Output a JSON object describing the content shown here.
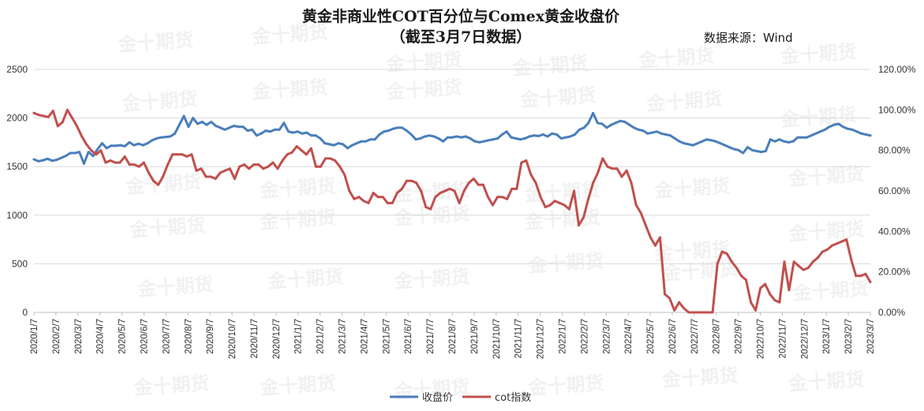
{
  "source_note": "数据来源：Wind",
  "watermark_text": "金十期货",
  "chart_data": {
    "type": "line",
    "title": "黄金非商业性COT百分位与Comex黄金收盘价",
    "subtitle": "（截至3月7日数据）",
    "xlabel": "",
    "ylabel": "",
    "ylim": [
      0,
      2500
    ],
    "y2lim": [
      0,
      1.2
    ],
    "yticks": [
      "0",
      "500",
      "1000",
      "1500",
      "2000",
      "2500"
    ],
    "y2ticks": [
      "0.00%",
      "20.00%",
      "40.00%",
      "60.00%",
      "80.00%",
      "100.00%",
      "120.00%"
    ],
    "xticks": [
      "2020/1/7",
      "2020/2/7",
      "2020/3/7",
      "2020/4/7",
      "2020/5/7",
      "2020/6/7",
      "2020/7/7",
      "2020/8/7",
      "2020/9/7",
      "2020/10/7",
      "2020/11/7",
      "2020/12/7",
      "2021/1/7",
      "2021/2/7",
      "2021/3/7",
      "2021/4/7",
      "2021/5/7",
      "2021/6/7",
      "2021/7/7",
      "2021/8/7",
      "2021/9/7",
      "2021/10/7",
      "2021/11/7",
      "2021/12/7",
      "2022/1/7",
      "2022/2/7",
      "2022/3/7",
      "2022/4/7",
      "2022/5/7",
      "2022/6/7",
      "2022/7/7",
      "2022/8/7",
      "2022/9/7",
      "2022/10/7",
      "2022/11/7",
      "2022/12/7",
      "2023/1/7",
      "2023/2/7",
      "2023/3/7"
    ],
    "grid": true,
    "legend_position": "bottom",
    "series": [
      {
        "name": "收盘价",
        "axis": "left",
        "color": "#4a7ebb",
        "values": [
          1575,
          1555,
          1565,
          1580,
          1560,
          1570,
          1590,
          1610,
          1640,
          1640,
          1650,
          1530,
          1650,
          1610,
          1680,
          1740,
          1690,
          1715,
          1715,
          1720,
          1710,
          1750,
          1720,
          1735,
          1720,
          1740,
          1770,
          1790,
          1800,
          1805,
          1810,
          1840,
          1930,
          2020,
          1910,
          2000,
          1940,
          1960,
          1930,
          1960,
          1920,
          1900,
          1880,
          1900,
          1920,
          1910,
          1910,
          1870,
          1880,
          1820,
          1840,
          1870,
          1860,
          1880,
          1880,
          1950,
          1860,
          1850,
          1860,
          1840,
          1850,
          1820,
          1820,
          1790,
          1740,
          1730,
          1720,
          1740,
          1730,
          1690,
          1720,
          1740,
          1760,
          1760,
          1780,
          1780,
          1830,
          1860,
          1870,
          1890,
          1900,
          1900,
          1870,
          1830,
          1780,
          1790,
          1810,
          1820,
          1810,
          1790,
          1760,
          1800,
          1800,
          1810,
          1800,
          1810,
          1790,
          1760,
          1750,
          1760,
          1770,
          1780,
          1790,
          1830,
          1860,
          1800,
          1790,
          1780,
          1790,
          1810,
          1820,
          1815,
          1830,
          1810,
          1840,
          1830,
          1790,
          1800,
          1810,
          1830,
          1880,
          1900,
          1950,
          2050,
          1950,
          1940,
          1900,
          1930,
          1950,
          1970,
          1960,
          1930,
          1900,
          1880,
          1870,
          1840,
          1850,
          1860,
          1840,
          1830,
          1820,
          1790,
          1760,
          1740,
          1730,
          1720,
          1740,
          1760,
          1780,
          1770,
          1760,
          1740,
          1720,
          1700,
          1680,
          1670,
          1640,
          1700,
          1670,
          1660,
          1650,
          1660,
          1780,
          1760,
          1780,
          1760,
          1750,
          1760,
          1800,
          1800,
          1800,
          1820,
          1840,
          1860,
          1880,
          1910,
          1930,
          1940,
          1910,
          1890,
          1880,
          1860,
          1840,
          1830,
          1820
        ]
      },
      {
        "name": "cot指数",
        "axis": "right",
        "color": "#c0504d",
        "values": [
          0.985,
          0.975,
          0.97,
          0.965,
          0.995,
          0.92,
          0.94,
          1.0,
          0.96,
          0.92,
          0.87,
          0.83,
          0.8,
          0.78,
          0.8,
          0.74,
          0.75,
          0.74,
          0.74,
          0.77,
          0.73,
          0.73,
          0.72,
          0.74,
          0.69,
          0.65,
          0.63,
          0.67,
          0.73,
          0.78,
          0.78,
          0.78,
          0.77,
          0.78,
          0.7,
          0.71,
          0.67,
          0.67,
          0.66,
          0.69,
          0.7,
          0.71,
          0.66,
          0.72,
          0.73,
          0.71,
          0.73,
          0.73,
          0.71,
          0.72,
          0.74,
          0.71,
          0.75,
          0.78,
          0.79,
          0.82,
          0.8,
          0.78,
          0.81,
          0.72,
          0.72,
          0.76,
          0.76,
          0.75,
          0.72,
          0.68,
          0.6,
          0.56,
          0.57,
          0.55,
          0.54,
          0.59,
          0.57,
          0.57,
          0.54,
          0.54,
          0.59,
          0.61,
          0.65,
          0.65,
          0.64,
          0.6,
          0.52,
          0.51,
          0.57,
          0.59,
          0.6,
          0.61,
          0.6,
          0.54,
          0.6,
          0.64,
          0.66,
          0.63,
          0.63,
          0.57,
          0.53,
          0.57,
          0.57,
          0.56,
          0.61,
          0.61,
          0.74,
          0.75,
          0.68,
          0.64,
          0.57,
          0.52,
          0.53,
          0.55,
          0.54,
          0.53,
          0.51,
          0.6,
          0.43,
          0.47,
          0.56,
          0.64,
          0.69,
          0.76,
          0.72,
          0.71,
          0.71,
          0.67,
          0.7,
          0.64,
          0.53,
          0.49,
          0.43,
          0.37,
          0.33,
          0.37,
          0.09,
          0.07,
          0.01,
          0.05,
          0.02,
          0.0,
          0.0,
          0.0,
          0.0,
          0.0,
          0.0,
          0.24,
          0.3,
          0.29,
          0.25,
          0.22,
          0.18,
          0.16,
          0.05,
          0.01,
          0.12,
          0.14,
          0.09,
          0.06,
          0.05,
          0.25,
          0.11,
          0.25,
          0.23,
          0.21,
          0.22,
          0.25,
          0.27,
          0.3,
          0.31,
          0.33,
          0.34,
          0.35,
          0.36,
          0.26,
          0.18,
          0.18,
          0.19,
          0.15
        ]
      }
    ]
  }
}
